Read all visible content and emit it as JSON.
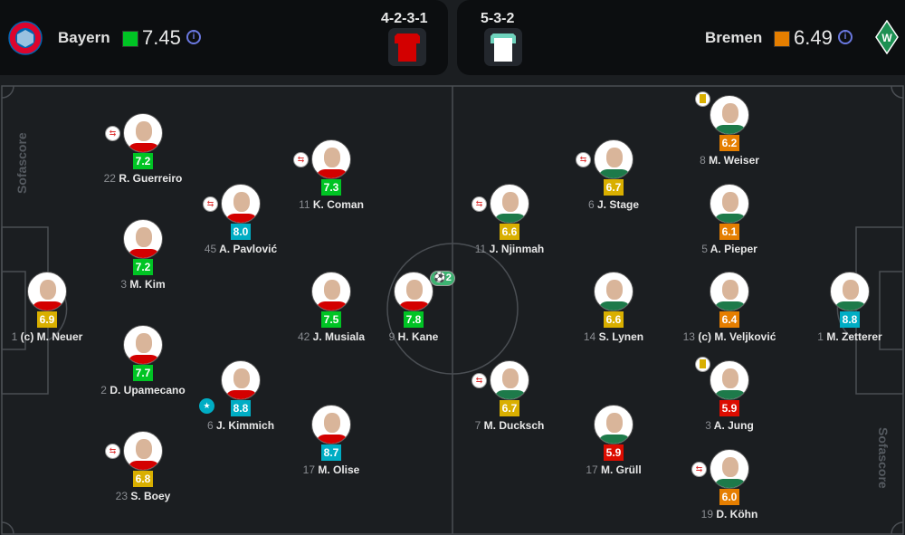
{
  "colors": {
    "rating_teal": "#00adc4",
    "rating_green": "#00c424",
    "rating_yellow": "#d9af00",
    "rating_orange": "#e57e00",
    "rating_red": "#dc0c00",
    "home_kit": "#d30000",
    "away_kit": "#ffffff",
    "away_kit_trim": "#6fd3bd"
  },
  "home": {
    "name": "Bayern",
    "rating": "7.45",
    "rating_color": "#00c424",
    "formation": "4-2-3-1",
    "crest": "bayern-crest-icon"
  },
  "away": {
    "name": "Bremen",
    "rating": "6.49",
    "rating_color": "#e57e00",
    "formation": "5-3-2",
    "crest": "werder-crest-icon"
  },
  "info_label": "i",
  "watermark": "Sofascore",
  "home_players": [
    {
      "num": "1",
      "name": "(c) M. Neuer",
      "rating": "6.9",
      "color": "#d9af00"
    },
    {
      "num": "22",
      "name": "R. Guerreiro",
      "rating": "7.2",
      "color": "#00c424",
      "sub": true
    },
    {
      "num": "3",
      "name": "M. Kim",
      "rating": "7.2",
      "color": "#00c424"
    },
    {
      "num": "2",
      "name": "D. Upamecano",
      "rating": "7.7",
      "color": "#00c424"
    },
    {
      "num": "23",
      "name": "S. Boey",
      "rating": "6.8",
      "color": "#d9af00",
      "sub": true
    },
    {
      "num": "45",
      "name": "A. Pavlović",
      "rating": "8.0",
      "color": "#00adc4",
      "sub": true
    },
    {
      "num": "6",
      "name": "J. Kimmich",
      "rating": "8.8",
      "color": "#00adc4",
      "star": true
    },
    {
      "num": "11",
      "name": "K. Coman",
      "rating": "7.3",
      "color": "#00c424",
      "sub": true
    },
    {
      "num": "42",
      "name": "J. Musiala",
      "rating": "7.5",
      "color": "#00c424"
    },
    {
      "num": "17",
      "name": "M. Olise",
      "rating": "8.7",
      "color": "#00adc4"
    },
    {
      "num": "9",
      "name": "H. Kane",
      "rating": "7.8",
      "color": "#00c424",
      "goals": "2"
    }
  ],
  "away_players": [
    {
      "num": "11",
      "name": "J. Njinmah",
      "rating": "6.6",
      "color": "#d9af00",
      "sub": true
    },
    {
      "num": "7",
      "name": "M. Ducksch",
      "rating": "6.7",
      "color": "#d9af00",
      "sub": true
    },
    {
      "num": "6",
      "name": "J. Stage",
      "rating": "6.7",
      "color": "#d9af00",
      "sub": true
    },
    {
      "num": "14",
      "name": "S. Lynen",
      "rating": "6.6",
      "color": "#d9af00"
    },
    {
      "num": "17",
      "name": "M. Grüll",
      "rating": "5.9",
      "color": "#dc0c00"
    },
    {
      "num": "8",
      "name": "M. Weiser",
      "rating": "6.2",
      "color": "#e57e00",
      "yellow": true
    },
    {
      "num": "5",
      "name": "A. Pieper",
      "rating": "6.1",
      "color": "#e57e00"
    },
    {
      "num": "13",
      "name": "(c) M. Veljković",
      "rating": "6.4",
      "color": "#e57e00"
    },
    {
      "num": "3",
      "name": "A. Jung",
      "rating": "5.9",
      "color": "#dc0c00",
      "yellow": true
    },
    {
      "num": "19",
      "name": "D. Köhn",
      "rating": "6.0",
      "color": "#e57e00",
      "sub": true
    },
    {
      "num": "1",
      "name": "M. Zetterer",
      "rating": "8.8",
      "color": "#00adc4"
    }
  ]
}
